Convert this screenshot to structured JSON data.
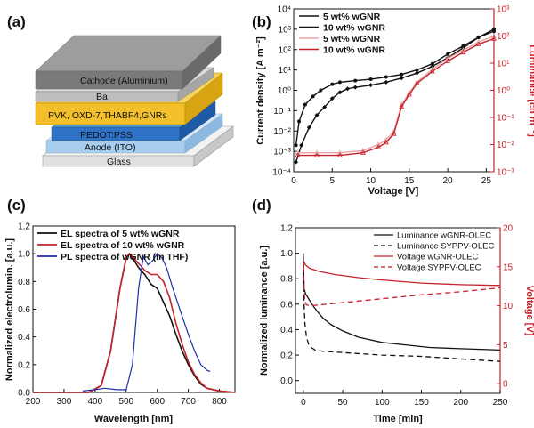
{
  "panels": {
    "a": {
      "label": "(a)",
      "layers": [
        {
          "key": "cathode",
          "text": "Cathode (Aluminium)",
          "color": "#8c8c8c"
        },
        {
          "key": "ba",
          "text": "Ba",
          "color": "#bdbdbd"
        },
        {
          "key": "emissive",
          "text": "PVK, OXD-7,THABF4,GNRs",
          "color": "#f3bf2a"
        },
        {
          "key": "pedot",
          "text": "PEDOT:PSS",
          "color": "#2f73c9"
        },
        {
          "key": "anode",
          "text": "Anode (ITO)",
          "color": "#a9cdef"
        },
        {
          "key": "glass",
          "text": "Glass",
          "color": "#dcdcdc"
        }
      ]
    }
  },
  "colors": {
    "black": "#111111",
    "red": "#c4222a",
    "lightred": "#e8a4a4",
    "blue": "#1f2fa8",
    "axis_red": "#c4222a"
  },
  "chart_data": [
    {
      "panel": "(b)",
      "type": "line",
      "xlabel": "Voltage [V]",
      "ylabel": "Current density [A m⁻²]",
      "y2label": "Luminance [cd m⁻²]",
      "xlim": [
        0,
        26
      ],
      "ylim_log10": [
        -4,
        4
      ],
      "y2lim_log10": [
        -3,
        3
      ],
      "xticks": [
        0,
        5,
        10,
        15,
        20,
        25
      ],
      "yticks": [
        "10⁻⁴",
        "10⁻³",
        "10⁻²",
        "10⁻¹",
        "10⁰",
        "10¹",
        "10²",
        "10³",
        "10⁴"
      ],
      "y2ticks": [
        "10⁻³",
        "10⁻²",
        "10⁻¹",
        "10⁰",
        "10¹",
        "10²",
        "10³"
      ],
      "legend": [
        "5 wt% wGNR",
        "10 wt% wGNR",
        "5 wt% wGNR",
        "10 wt% wGNR"
      ],
      "series": [
        {
          "name": "5 wt% wGNR",
          "quantity": "current density",
          "axis": "left",
          "x": [
            0.3,
            1,
            2,
            3,
            4,
            5,
            6,
            7,
            8,
            10,
            12,
            14,
            16,
            18,
            20,
            22,
            24,
            26
          ],
          "y": [
            0.0003,
            0.002,
            0.015,
            0.06,
            0.15,
            0.4,
            0.8,
            1.2,
            1.4,
            1.8,
            2.5,
            4,
            7,
            15,
            40,
            120,
            400,
            1000
          ]
        },
        {
          "name": "10 wt% wGNR",
          "quantity": "current density",
          "axis": "left",
          "x": [
            0.3,
            0.7,
            1.5,
            2.5,
            3.5,
            5,
            6,
            8,
            10,
            12,
            14,
            16,
            18,
            20,
            22,
            24,
            26
          ],
          "y": [
            0.002,
            0.03,
            0.2,
            0.5,
            1.0,
            2.0,
            2.5,
            3,
            3.5,
            4.5,
            6,
            10,
            20,
            60,
            150,
            400,
            800
          ]
        },
        {
          "name": "5 wt% wGNR",
          "quantity": "luminance",
          "axis": "right",
          "x": [
            0.5,
            3,
            6,
            9,
            11,
            12,
            13,
            14,
            15,
            16,
            18,
            20,
            22,
            24,
            26
          ],
          "y": [
            0.005,
            0.005,
            0.005,
            0.006,
            0.01,
            0.015,
            0.03,
            0.3,
            0.8,
            2,
            6,
            15,
            30,
            60,
            100
          ]
        },
        {
          "name": "10 wt% wGNR",
          "quantity": "luminance",
          "axis": "right",
          "x": [
            0.5,
            3,
            6,
            9,
            11,
            12,
            13,
            14,
            15,
            16,
            18,
            20,
            22,
            24,
            26
          ],
          "y": [
            0.004,
            0.004,
            0.004,
            0.005,
            0.008,
            0.012,
            0.025,
            0.25,
            0.7,
            1.8,
            5,
            12,
            25,
            50,
            80
          ]
        }
      ]
    },
    {
      "panel": "(c)",
      "type": "line",
      "xlabel": "Wavelength [nm]",
      "ylabel": "Normalized electrolumin. [a.u.]",
      "xlim": [
        200,
        850
      ],
      "ylim": [
        0,
        1.2
      ],
      "xticks": [
        200,
        300,
        400,
        500,
        600,
        700,
        800
      ],
      "yticks": [
        0.0,
        0.2,
        0.4,
        0.6,
        0.8,
        1.0,
        1.2
      ],
      "legend": [
        "EL spectra of 5 wt% wGNR",
        "EL spectra of 10 wt% wGNR",
        "PL spectra of wGNR (in THF)"
      ],
      "series": [
        {
          "name": "EL spectra of 5 wt% wGNR",
          "x": [
            200,
            380,
            420,
            450,
            480,
            500,
            510,
            520,
            540,
            560,
            580,
            600,
            620,
            640,
            660,
            680,
            700,
            720,
            740,
            760,
            800,
            850
          ],
          "y": [
            0,
            0,
            0.05,
            0.3,
            0.75,
            0.97,
            1.0,
            0.97,
            0.9,
            0.85,
            0.78,
            0.75,
            0.65,
            0.55,
            0.42,
            0.3,
            0.2,
            0.12,
            0.06,
            0.03,
            0.01,
            0.0
          ]
        },
        {
          "name": "EL spectra of 10 wt% wGNR",
          "x": [
            200,
            380,
            420,
            450,
            480,
            500,
            510,
            520,
            540,
            560,
            580,
            600,
            620,
            640,
            660,
            680,
            700,
            720,
            740,
            760,
            800,
            850
          ],
          "y": [
            0,
            0,
            0.05,
            0.3,
            0.75,
            0.97,
            1.0,
            0.98,
            0.93,
            0.88,
            0.85,
            0.85,
            0.8,
            0.68,
            0.5,
            0.35,
            0.22,
            0.13,
            0.07,
            0.03,
            0.01,
            0.0
          ]
        },
        {
          "name": "PL spectra of wGNR (in THF)",
          "x": [
            360,
            400,
            430,
            470,
            500,
            520,
            540,
            555,
            570,
            585,
            600,
            615,
            630,
            650,
            680,
            700,
            720,
            740,
            760,
            770
          ],
          "y": [
            0.01,
            0.02,
            0.03,
            0.02,
            0.02,
            0.2,
            0.75,
            0.98,
            0.92,
            0.95,
            1.0,
            0.97,
            0.9,
            0.75,
            0.55,
            0.42,
            0.3,
            0.2,
            0.16,
            0.15
          ]
        }
      ]
    },
    {
      "panel": "(d)",
      "type": "line",
      "xlabel": "Time [min]",
      "ylabel": "Normalized luminance [a.u.]",
      "y2label": "Voltage [V]",
      "xlim": [
        -10,
        250
      ],
      "ylim": [
        -0.1,
        1.2
      ],
      "y2lim": [
        -1.25,
        20
      ],
      "xticks": [
        0,
        50,
        100,
        150,
        200,
        250
      ],
      "yticks": [
        0.0,
        0.2,
        0.4,
        0.6,
        0.8,
        1.0,
        1.2
      ],
      "y2ticks": [
        0,
        5,
        10,
        15,
        20
      ],
      "legend": [
        "Luminance wGNR-OLEC",
        "Luminance SYPPV-OLEC",
        "Voltage wGNR-OLEC",
        "Voltage SYPPV-OLEC"
      ],
      "series": [
        {
          "name": "Luminance wGNR-OLEC",
          "axis": "left",
          "style": "solid",
          "color": "black",
          "x": [
            0,
            1,
            3,
            5,
            8,
            12,
            18,
            25,
            35,
            50,
            70,
            100,
            130,
            160,
            200,
            250
          ],
          "y": [
            1.0,
            0.72,
            0.68,
            0.66,
            0.63,
            0.59,
            0.54,
            0.49,
            0.44,
            0.39,
            0.34,
            0.3,
            0.28,
            0.26,
            0.25,
            0.24
          ]
        },
        {
          "name": "Luminance SYPPV-OLEC",
          "axis": "left",
          "style": "dashed",
          "color": "black",
          "x": [
            0,
            1,
            2,
            4,
            7,
            10,
            15,
            25,
            50,
            100,
            150,
            200,
            250
          ],
          "y": [
            0.95,
            0.6,
            0.45,
            0.34,
            0.28,
            0.26,
            0.24,
            0.23,
            0.22,
            0.2,
            0.19,
            0.17,
            0.15
          ]
        },
        {
          "name": "Voltage wGNR-OLEC",
          "axis": "right",
          "style": "solid",
          "color": "red",
          "x": [
            0,
            1,
            3,
            8,
            20,
            40,
            70,
            100,
            150,
            200,
            250
          ],
          "y": [
            14.5,
            15.6,
            15.2,
            14.8,
            14.4,
            14.0,
            13.6,
            13.3,
            12.9,
            12.7,
            12.6
          ]
        },
        {
          "name": "Voltage SYPPV-OLEC",
          "axis": "right",
          "style": "dashed",
          "color": "red",
          "x": [
            0,
            1,
            2,
            4,
            10,
            30,
            60,
            100,
            150,
            200,
            250
          ],
          "y": [
            15.0,
            12.0,
            10.5,
            10.1,
            10.0,
            10.2,
            10.5,
            10.9,
            11.4,
            11.8,
            12.3
          ]
        }
      ]
    }
  ]
}
